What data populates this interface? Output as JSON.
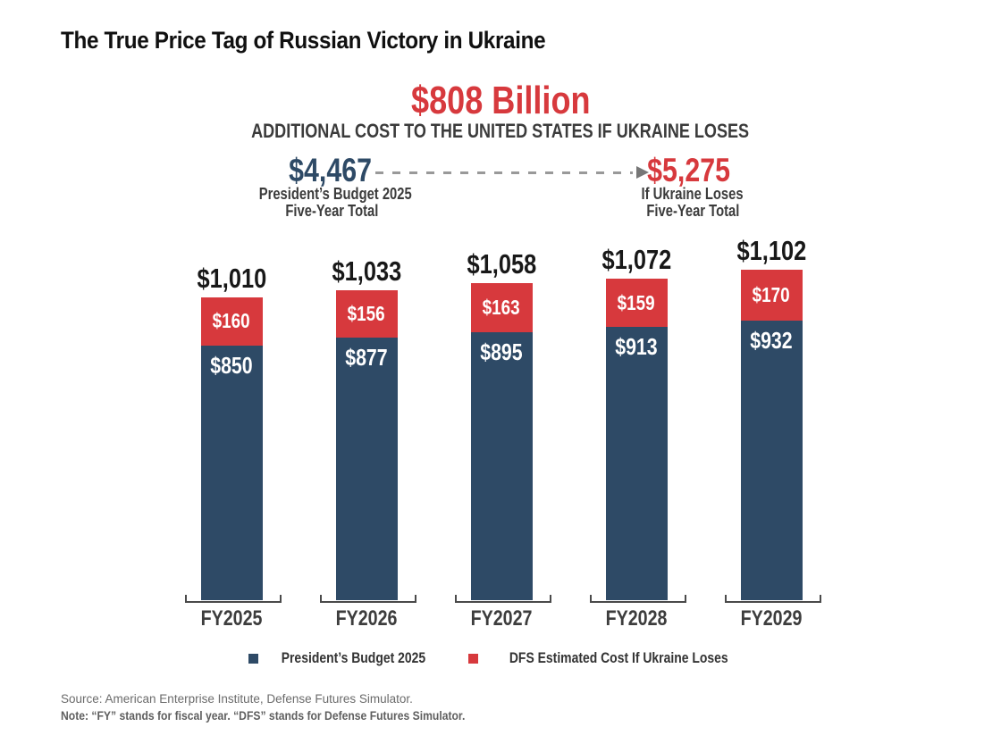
{
  "title": "The True Price Tag of Russian Victory in Ukraine",
  "headline": {
    "amount": "$808 Billion",
    "subtitle": "ADDITIONAL COST TO THE UNITED STATES IF UKRAINE LOSES"
  },
  "comparison": {
    "left": {
      "value": "$4,467",
      "label_line1": "President’s Budget 2025",
      "label_line2": "Five-Year Total"
    },
    "right": {
      "value": "$5,275",
      "label_line1": "If Ukraine Loses",
      "label_line2": "Five-Year Total"
    },
    "arrow": "dashed-right-arrow"
  },
  "chart_data": {
    "type": "bar",
    "stacked": true,
    "categories": [
      "FY2025",
      "FY2026",
      "FY2027",
      "FY2028",
      "FY2029"
    ],
    "series": [
      {
        "name": "President’s Budget 2025",
        "color": "#2e4a66",
        "values": [
          850,
          877,
          895,
          913,
          932
        ],
        "labels": [
          "$850",
          "$877",
          "$895",
          "$913",
          "$932"
        ]
      },
      {
        "name": "DFS Estimated Cost If Ukraine Loses",
        "color": "#d7393d",
        "values": [
          160,
          156,
          163,
          159,
          170
        ],
        "labels": [
          "$160",
          "$156",
          "$163",
          "$159",
          "$170"
        ]
      }
    ],
    "totals": {
      "values": [
        1010,
        1033,
        1058,
        1072,
        1102
      ],
      "labels": [
        "$1,010",
        "$1,033",
        "$1,058",
        "$1,072",
        "$1,102"
      ]
    },
    "xlabel": "",
    "ylabel": "",
    "grid": false,
    "legend_position": "bottom"
  },
  "legend": [
    {
      "label": "President’s Budget 2025",
      "color": "#2e4a66"
    },
    {
      "label": "DFS Estimated Cost If Ukraine Loses",
      "color": "#d7393d"
    }
  ],
  "footer": {
    "source": "Source: American Enterprise Institute, Defense Futures Simulator.",
    "note": "Note: “FY” stands for fiscal year. “DFS” stands for Defense Futures Simulator."
  },
  "colors": {
    "budget_blue": "#2e4a66",
    "loss_red": "#d7393d",
    "arrow_gray": "#999999",
    "text_dark": "#3b3b3b"
  }
}
